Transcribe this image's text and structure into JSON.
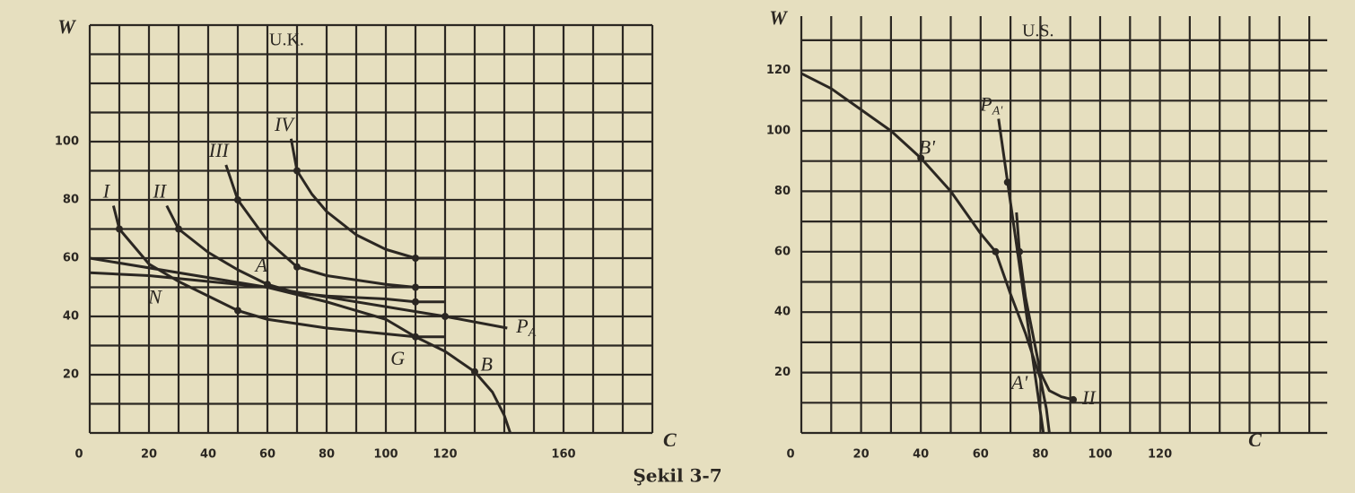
{
  "chart_data": [
    {
      "type": "line",
      "title": "U.K.",
      "xlabel": "C",
      "ylabel": "W",
      "xlim": [
        0,
        190
      ],
      "ylim": [
        0,
        140
      ],
      "xticks": [
        0,
        20,
        40,
        60,
        80,
        100,
        120,
        160
      ],
      "yticks": [
        20,
        40,
        60,
        80,
        100
      ],
      "xgrid": [
        0,
        10,
        20,
        30,
        40,
        50,
        60,
        70,
        80,
        90,
        100,
        110,
        120,
        130,
        140,
        150,
        160,
        170,
        180,
        190
      ],
      "ygrid": [
        0,
        10,
        20,
        30,
        40,
        50,
        60,
        70,
        80,
        90,
        100,
        110,
        120,
        130,
        140
      ],
      "grid": true,
      "color": "#2b2722",
      "series": [
        {
          "name": "I",
          "label_at": "start",
          "x": [
            8,
            10,
            20,
            30,
            40,
            50,
            60,
            80,
            100,
            110,
            120
          ],
          "y": [
            78,
            70,
            58,
            52,
            47,
            42,
            39,
            36,
            34,
            33,
            33
          ],
          "markers": {
            "x": [
              10,
              50,
              110
            ],
            "y": [
              70,
              42,
              33
            ]
          }
        },
        {
          "name": "II",
          "label_at": "start",
          "x": [
            26,
            30,
            40,
            50,
            60,
            70,
            80,
            100,
            110,
            120
          ],
          "y": [
            78,
            70,
            62,
            56,
            51,
            48,
            47,
            46,
            45,
            45
          ],
          "markers": {
            "x": [
              30,
              60,
              110
            ],
            "y": [
              70,
              51,
              45
            ]
          }
        },
        {
          "name": "III",
          "label_at": "start",
          "x": [
            46,
            50,
            60,
            70,
            80,
            100,
            110,
            120
          ],
          "y": [
            92,
            80,
            66,
            57,
            54,
            51,
            50,
            50
          ],
          "markers": {
            "x": [
              50,
              70,
              110
            ],
            "y": [
              80,
              57,
              50
            ]
          }
        },
        {
          "name": "IV",
          "label_at": "start",
          "x": [
            68,
            70,
            75,
            80,
            90,
            100,
            110,
            120
          ],
          "y": [
            101,
            90,
            82,
            76,
            68,
            63,
            60,
            60
          ],
          "markers": {
            "x": [
              70,
              110
            ],
            "y": [
              90,
              60
            ]
          }
        },
        {
          "x": [
            0,
            20,
            40,
            60,
            80,
            100,
            110,
            120,
            130,
            136,
            140,
            142
          ],
          "y": [
            55,
            54,
            52,
            50,
            45,
            39,
            33,
            28,
            21,
            14,
            6,
            0
          ],
          "markers": {
            "x": [
              130
            ],
            "y": [
              21
            ]
          }
        },
        {
          "name": "P",
          "name_sub": "A",
          "label_at": "end",
          "x": [
            0,
            120,
            141
          ],
          "y": [
            60,
            40,
            36
          ],
          "markers": {
            "x": [
              120
            ],
            "y": [
              40
            ]
          }
        }
      ],
      "annotations": [
        {
          "text": "A",
          "x": 58,
          "y": 57
        },
        {
          "text": "N",
          "x": 22,
          "y": 46
        },
        {
          "text": "G",
          "x": 104,
          "y": 25
        },
        {
          "text": "B",
          "x": 134,
          "y": 23
        }
      ]
    },
    {
      "type": "line",
      "title": "U.S.",
      "xlabel": "C",
      "ylabel": "W",
      "xlim": [
        0,
        176
      ],
      "ylim": [
        0,
        138
      ],
      "xticks": [
        0,
        20,
        40,
        60,
        80,
        100,
        120
      ],
      "yticks": [
        20,
        40,
        60,
        80,
        100,
        120
      ],
      "xgrid": [
        0,
        10,
        20,
        30,
        40,
        50,
        60,
        70,
        80,
        90,
        100,
        110,
        120,
        130,
        140,
        150,
        160,
        170
      ],
      "ygrid": [
        0,
        10,
        20,
        30,
        40,
        50,
        60,
        70,
        80,
        90,
        100,
        110,
        120,
        130
      ],
      "grid": true,
      "color": "#2b2722",
      "series": [
        {
          "x": [
            0,
            10,
            20,
            30,
            40,
            50,
            60,
            65,
            70,
            75,
            80,
            82,
            83
          ],
          "y": [
            119,
            114,
            107,
            100,
            91,
            80,
            66,
            60,
            46,
            33,
            18,
            8,
            0
          ],
          "markers": {
            "x": [
              40,
              65
            ],
            "y": [
              91,
              60
            ]
          }
        },
        {
          "name": "P",
          "name_sub": "A'",
          "label_at": "start",
          "x": [
            66,
            81
          ],
          "y": [
            104,
            0
          ],
          "markers": {
            "x": [
              69
            ],
            "y": [
              83
            ]
          }
        },
        {
          "name": "II",
          "label_at": "end",
          "x": [
            72,
            73,
            75,
            78,
            80,
            83,
            87,
            91
          ],
          "y": [
            73,
            60,
            45,
            30,
            20,
            14,
            12,
            11
          ],
          "markers": {
            "x": [
              73,
              91
            ],
            "y": [
              60,
              11
            ]
          }
        }
      ],
      "annotations": [
        {
          "text": "B'",
          "x": 42,
          "y": 94
        },
        {
          "text": "A'",
          "x": 73,
          "y": 16
        }
      ]
    }
  ],
  "caption": "Şekil 3-7"
}
